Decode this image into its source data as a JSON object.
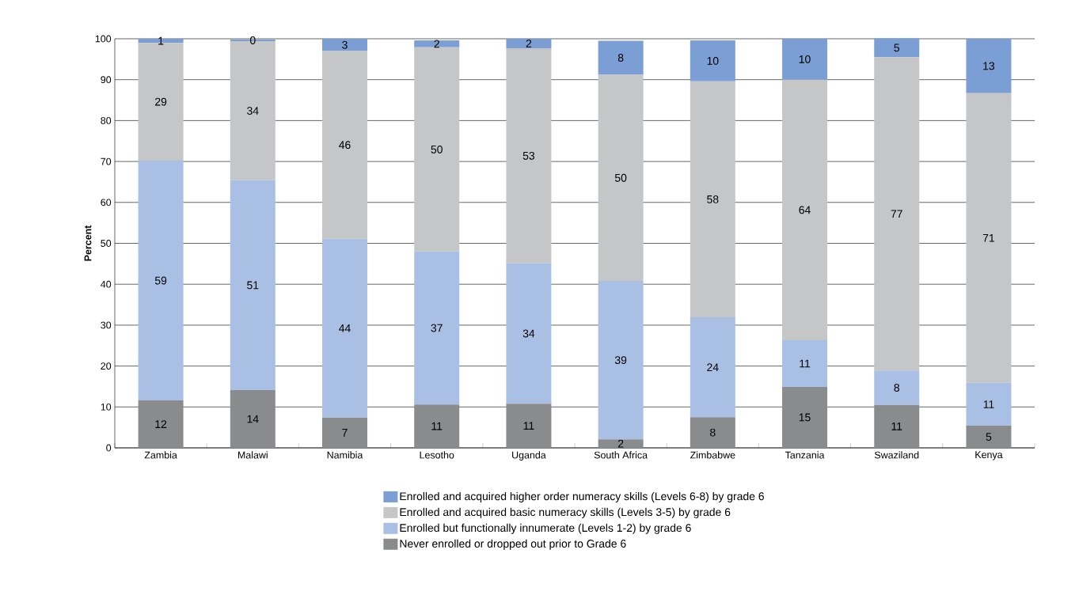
{
  "chart_data": {
    "type": "bar",
    "stacked": true,
    "ylabel": "Percent",
    "categories": [
      "Zambia",
      "Malawi",
      "Namibia",
      "Lesotho",
      "Uganda",
      "South Africa",
      "Zimbabwe",
      "Tanzania",
      "Swaziland",
      "Kenya"
    ],
    "series": [
      {
        "name": "Never enrolled or dropped out prior to Grade 6",
        "color": "#8a8b8d",
        "values": [
          11.6,
          14.1,
          7.4,
          10.6,
          10.8,
          2.1,
          7.5,
          14.9,
          10.5,
          5.4
        ],
        "value_labels": [
          "12",
          "14",
          "7",
          "11",
          "11",
          "2",
          "8",
          "15",
          "11",
          "5"
        ]
      },
      {
        "name": "Enrolled but functionally innumerate (Levels 1-2) by grade 6",
        "color": "#aabfe4",
        "values": [
          58.6,
          51.3,
          43.7,
          37.4,
          34.3,
          38.7,
          24.4,
          11.4,
          8.4,
          10.5
        ],
        "value_labels": [
          "59",
          "51",
          "44",
          "37",
          "34",
          "39",
          "24",
          "11",
          "8",
          "11"
        ]
      },
      {
        "name": "Enrolled and acquired basic numeracy skills (Levels 3-5) by grade 6",
        "color": "#c5c6c8",
        "values": [
          28.8,
          34.0,
          45.9,
          49.9,
          52.6,
          50.4,
          57.7,
          63.7,
          76.6,
          70.8
        ],
        "value_labels": [
          "29",
          "34",
          "46",
          "50",
          "53",
          "50",
          "58",
          "64",
          "77",
          "71"
        ]
      },
      {
        "name": "Enrolled and acquired higher order numeracy skills (Levels 6-8) by grade 6",
        "color": "#7b9fd4",
        "values": [
          1.0,
          0.4,
          3.0,
          1.7,
          2.3,
          8.3,
          10.0,
          10.0,
          4.6,
          13.3
        ],
        "value_labels": [
          "1",
          "0",
          "3",
          "2",
          "2",
          "8",
          "10",
          "10",
          "5",
          "13"
        ]
      }
    ],
    "ylim": [
      0,
      100
    ],
    "yticks": [
      0,
      10,
      20,
      30,
      40,
      50,
      60,
      70,
      80,
      90,
      100
    ],
    "grid": "y",
    "legend": "bottom"
  }
}
